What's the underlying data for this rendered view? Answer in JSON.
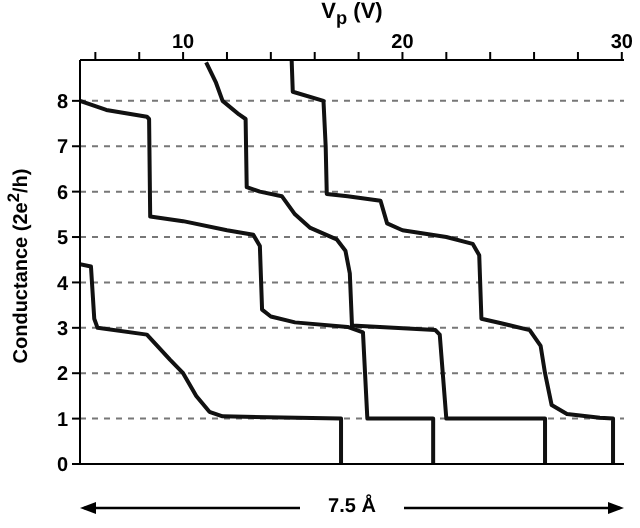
{
  "chart_data": {
    "type": "line",
    "xlabel": "V$_{p}$ (V)",
    "ylabel": "Conductance (2e$^{2}$/h)",
    "xlim": [
      5.3,
      30.1
    ],
    "ylim": [
      0,
      8.9
    ],
    "xticks": [
      {
        "value": 6,
        "label": null
      },
      {
        "value": 8,
        "label": null
      },
      10,
      {
        "value": 12,
        "label": null
      },
      {
        "value": 14,
        "label": null
      },
      {
        "value": 16,
        "label": null
      },
      {
        "value": 18,
        "label": null
      },
      20,
      {
        "value": 22,
        "label": null
      },
      {
        "value": 24,
        "label": null
      },
      {
        "value": 26,
        "label": null
      },
      {
        "value": 28,
        "label": null
      },
      30
    ],
    "yticks": [
      0,
      1,
      2,
      3,
      4,
      5,
      6,
      7,
      8
    ],
    "grid": "y",
    "line_style": "solid",
    "marker": "none",
    "annotations": [
      "7.5 Å"
    ],
    "series": [
      {
        "color": "#111111",
        "x": [
          5.3,
          5.8,
          5.95,
          6.1,
          8.35,
          9.4,
          10,
          10.6,
          11.2,
          11.8,
          17.2,
          17.2
        ],
        "values": [
          4.4,
          4.35,
          3.2,
          3.0,
          2.85,
          2.3,
          2.0,
          1.5,
          1.15,
          1.05,
          1.0,
          0
        ]
      },
      {
        "color": "#111111",
        "x": [
          5.3,
          6.5,
          8.35,
          8.45,
          8.5,
          10,
          12,
          13.2,
          13.5,
          13.6,
          14,
          15.1,
          17.5,
          18.2,
          18.4,
          21.4,
          21.4
        ],
        "values": [
          8,
          7.8,
          7.65,
          7.6,
          5.45,
          5.35,
          5.15,
          5.05,
          4.8,
          3.4,
          3.25,
          3.12,
          3.02,
          2.9,
          1.0,
          1.0,
          0
        ]
      },
      {
        "color": "#111111",
        "x": [
          11.05,
          11.5,
          11.8,
          12.55,
          12.85,
          12.9,
          13.5,
          14.5,
          15.1,
          15.8,
          17.0,
          17.4,
          17.6,
          17.7,
          21.5,
          21.7,
          22.0,
          26.5,
          26.5
        ],
        "values": [
          8.85,
          8.4,
          8.0,
          7.7,
          7.6,
          6.1,
          6.0,
          5.9,
          5.5,
          5.2,
          4.95,
          4.7,
          4.2,
          3.05,
          2.95,
          2.85,
          1.0,
          1.0,
          0
        ]
      },
      {
        "color": "#111111",
        "x": [
          14.95,
          15.0,
          16.4,
          16.5,
          16.55,
          17.5,
          19.0,
          19.3,
          20,
          22,
          23.2,
          23.5,
          23.6,
          24.5,
          25.8,
          26.3,
          26.5,
          26.8,
          27.5,
          29,
          29.6,
          29.6
        ],
        "values": [
          8.88,
          8.2,
          8.0,
          7.0,
          5.95,
          5.9,
          5.8,
          5.3,
          5.15,
          5.0,
          4.85,
          4.6,
          3.2,
          3.1,
          2.95,
          2.6,
          2.0,
          1.3,
          1.1,
          1.02,
          1.0,
          0
        ]
      }
    ]
  }
}
